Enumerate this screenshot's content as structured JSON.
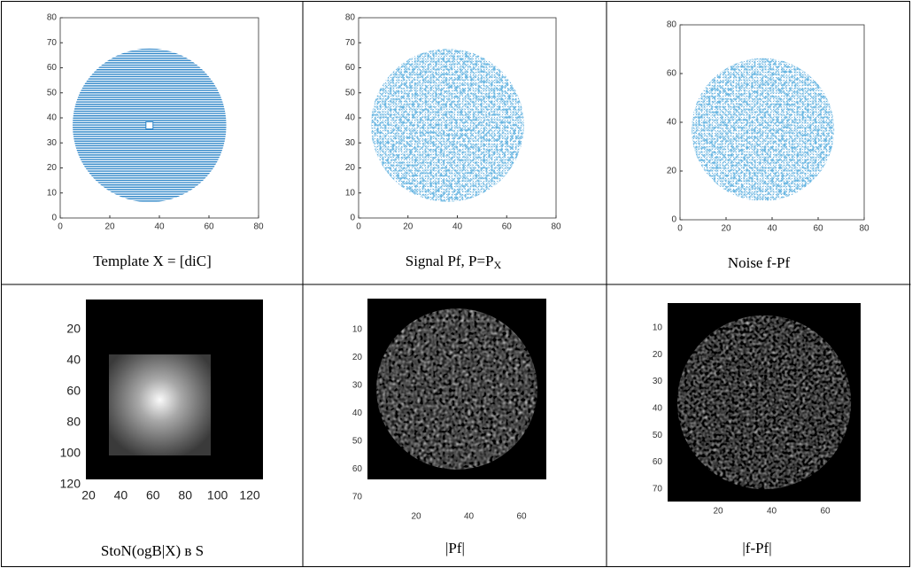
{
  "table": {
    "rows": [
      [
        {
          "caption": "Template X = [diC]",
          "x_ticks": [
            "0",
            "20",
            "40",
            "60",
            "80"
          ],
          "y_ticks": [
            "0",
            "10",
            "20",
            "30",
            "40",
            "50",
            "60",
            "70",
            "80"
          ]
        },
        {
          "caption": "Signal Pf, P=P",
          "caption_sub": "X",
          "x_ticks": [
            "0",
            "20",
            "40",
            "60",
            "80"
          ],
          "y_ticks": [
            "0",
            "10",
            "20",
            "30",
            "40",
            "50",
            "60",
            "70",
            "80"
          ]
        },
        {
          "caption": "Noise f-Pf",
          "x_ticks": [
            "0",
            "20",
            "40",
            "60",
            "80"
          ],
          "y_ticks": [
            "0",
            "20",
            "40",
            "60",
            "80"
          ]
        }
      ],
      [
        {
          "caption": "StoN(ogB|X) в S",
          "x_ticks": [
            "20",
            "40",
            "60",
            "80",
            "100",
            "120"
          ],
          "y_ticks": [
            "20",
            "40",
            "60",
            "80",
            "100",
            "120"
          ]
        },
        {
          "caption": "|Pf|",
          "x_ticks": [
            "20",
            "40",
            "60"
          ],
          "y_ticks": [
            "10",
            "20",
            "30",
            "40",
            "50",
            "60",
            "70"
          ]
        },
        {
          "caption": "|f-Pf|",
          "x_ticks": [
            "20",
            "40",
            "60"
          ],
          "y_ticks": [
            "10",
            "20",
            "30",
            "40",
            "50",
            "60",
            "70"
          ]
        }
      ]
    ]
  }
}
